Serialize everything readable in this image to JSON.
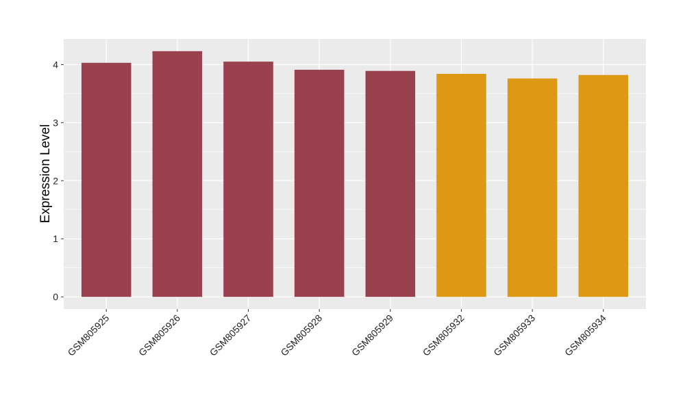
{
  "chart_data": {
    "type": "bar",
    "title": "",
    "xlabel": "",
    "ylabel": "Expression Level",
    "categories": [
      "GSM805925",
      "GSM805926",
      "GSM805927",
      "GSM805928",
      "GSM805929",
      "GSM805932",
      "GSM805933",
      "GSM805934"
    ],
    "values": [
      4.03,
      4.23,
      4.05,
      3.91,
      3.89,
      3.84,
      3.76,
      3.82
    ],
    "bar_colors": [
      "#9a4150",
      "#9a4150",
      "#9a4150",
      "#9a4150",
      "#9a4150",
      "#dd9914",
      "#dd9914",
      "#dd9914"
    ],
    "yticks": [
      "0",
      "1",
      "2",
      "3",
      "4"
    ],
    "ylim": [
      -0.21,
      4.44
    ],
    "grid": true,
    "panel_background": "#ebebeb"
  }
}
